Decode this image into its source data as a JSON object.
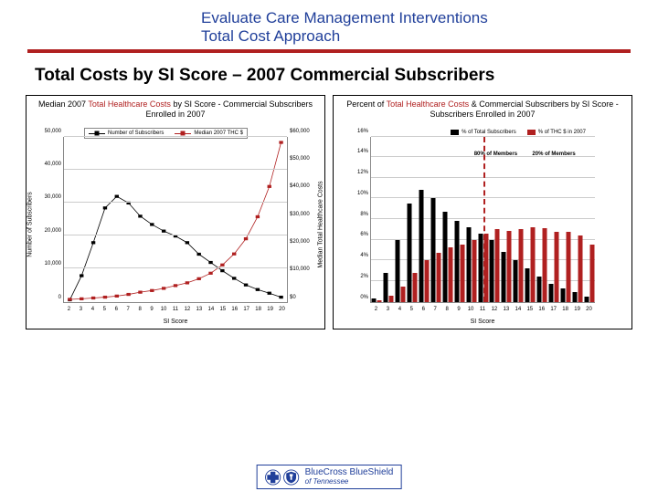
{
  "header": {
    "line1": "Evaluate Care Management Interventions",
    "line2": "Total Cost Approach"
  },
  "subtitle": "Total Costs by SI Score – 2007 Commercial Subscribers",
  "colors": {
    "brand_blue": "#203f9a",
    "brand_red": "#b02020",
    "black": "#000000",
    "grid": "#cccccc"
  },
  "chart_left": {
    "title_pre": "Median 2007 ",
    "title_red": "Total Healthcare Costs",
    "title_post": " by SI Score - Commercial Subscribers Enrolled in 2007",
    "y_left": {
      "label": "Number of Subscribers",
      "ticks": [
        "0",
        "10,000",
        "20,000",
        "30,000",
        "40,000",
        "50,000"
      ],
      "max": 50000
    },
    "y_right": {
      "label": "Median Total Healthcare Costs",
      "ticks": [
        "$0",
        "$10,000",
        "$20,000",
        "$30,000",
        "$40,000",
        "$50,000",
        "$60,000"
      ],
      "max": 60000
    },
    "x": {
      "label": "SI Score",
      "ticks": [
        "2",
        "3",
        "4",
        "5",
        "6",
        "7",
        "8",
        "9",
        "10",
        "11",
        "12",
        "13",
        "14",
        "15",
        "16",
        "17",
        "18",
        "19",
        "20"
      ]
    },
    "legend": {
      "items": [
        {
          "kind": "line-sq",
          "color": "#000000",
          "label": "Number of Subscribers"
        },
        {
          "kind": "line-sq",
          "color": "#b02020",
          "label": "Median 2007 THC $"
        }
      ]
    },
    "series_subs": [
      700,
      8000,
      18000,
      28500,
      32000,
      30000,
      26000,
      23500,
      21500,
      20000,
      18000,
      14500,
      12000,
      9500,
      7200,
      5200,
      3800,
      2700,
      1500
    ],
    "series_median": [
      1000,
      1200,
      1500,
      1800,
      2200,
      2800,
      3600,
      4200,
      5000,
      6000,
      7000,
      8500,
      10500,
      13500,
      17500,
      23000,
      31000,
      42000,
      58000
    ]
  },
  "chart_right": {
    "title_pre": "Percent of ",
    "title_red": "Total Healthcare Costs",
    "title_post": " & Commercial Subscribers by SI Score - Subscribers Enrolled in 2007",
    "y_left": {
      "ticks": [
        "0%",
        "2%",
        "4%",
        "6%",
        "8%",
        "10%",
        "12%",
        "14%",
        "16%"
      ],
      "max": 16
    },
    "x": {
      "label": "SI Score",
      "ticks": [
        "2",
        "3",
        "4",
        "5",
        "6",
        "7",
        "8",
        "9",
        "10",
        "11",
        "12",
        "13",
        "14",
        "15",
        "16",
        "17",
        "18",
        "19",
        "20"
      ]
    },
    "legend": {
      "items": [
        {
          "kind": "swatch",
          "color": "#000000",
          "label": "% of Total Subscribers"
        },
        {
          "kind": "swatch",
          "color": "#b02020",
          "label": "% of THC $ in 2007"
        }
      ]
    },
    "bars_members": [
      0.3,
      2.8,
      6.0,
      9.5,
      10.8,
      10.0,
      8.7,
      7.8,
      7.2,
      6.6,
      6.0,
      4.8,
      4.0,
      3.2,
      2.4,
      1.7,
      1.3,
      0.9,
      0.5
    ],
    "bars_costs": [
      0.1,
      0.6,
      1.5,
      2.8,
      4.0,
      4.7,
      5.3,
      5.5,
      6.0,
      6.6,
      7.0,
      6.9,
      7.0,
      7.2,
      7.1,
      6.8,
      6.8,
      6.4,
      5.5
    ],
    "annotations": {
      "left": "80% of Members",
      "right": "20% of Members",
      "split_after_index": 9
    }
  },
  "footer_logo": {
    "name": "BlueCross BlueShield",
    "sub": "of Tennessee"
  }
}
